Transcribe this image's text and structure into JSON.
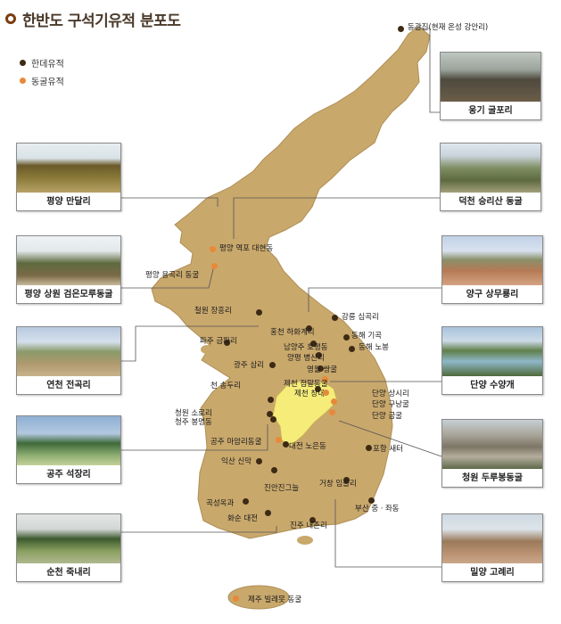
{
  "title": "한반도 구석기유적 분포도",
  "legend": [
    {
      "label": "한데유적",
      "color": "#3d2a14"
    },
    {
      "label": "동굴유적",
      "color": "#e8893a"
    }
  ],
  "photos": [
    {
      "caption": "웅기 굴포리",
      "scene": "coast"
    },
    {
      "caption": "평양 만달리",
      "scene": "hill"
    },
    {
      "caption": "덕천 승리산 동굴",
      "scene": "mountain"
    },
    {
      "caption": "평양 상원 검은모루동굴",
      "scene": "mound"
    },
    {
      "caption": "양구 상무룡리",
      "scene": "valley"
    },
    {
      "caption": "연천 전곡리",
      "scene": "plain"
    },
    {
      "caption": "단양 수양개",
      "scene": "river"
    },
    {
      "caption": "공주 석장리",
      "scene": "riverbank"
    },
    {
      "caption": "청원 두루봉동굴",
      "scene": "quarry"
    },
    {
      "caption": "순천 죽내리",
      "scene": "field"
    },
    {
      "caption": "밀양 고례리",
      "scene": "ridge"
    }
  ],
  "sites": [
    {
      "label": "동관진(현재 온성 강안리)",
      "type": "open"
    },
    {
      "label": "평양 역포 대현동",
      "type": "cave"
    },
    {
      "label": "평양 용곡리 동굴",
      "type": "cave"
    },
    {
      "label": "철원 장흥리",
      "type": "open"
    },
    {
      "label": "강릉 심곡리",
      "type": "open"
    },
    {
      "label": "홍천 하화계리",
      "type": "open"
    },
    {
      "label": "파주 금파리",
      "type": "open"
    },
    {
      "label": "남양주 호평동",
      "type": "open"
    },
    {
      "label": "양평 병산리",
      "type": "open"
    },
    {
      "label": "동해 기곡",
      "type": "open"
    },
    {
      "label": "동해 노봉",
      "type": "open"
    },
    {
      "label": "광주 삼리",
      "type": "open"
    },
    {
      "label": "영월 쌍굴",
      "type": "open"
    },
    {
      "label": "제천 점말동굴",
      "type": "cave"
    },
    {
      "label": "제천 창내",
      "type": "open"
    },
    {
      "label": "단양 상시리",
      "type": "cave"
    },
    {
      "label": "단양 구낭굴",
      "type": "cave"
    },
    {
      "label": "단양 금굴",
      "type": "cave"
    },
    {
      "label": "천 송두리",
      "type": "open"
    },
    {
      "label": "청원 소로리",
      "type": "open"
    },
    {
      "label": "청주 봉명동",
      "type": "open"
    },
    {
      "label": "공주 마암리동굴",
      "type": "cave"
    },
    {
      "label": "대전 노은동",
      "type": "open"
    },
    {
      "label": "익산 신막",
      "type": "open"
    },
    {
      "label": "포항 새터",
      "type": "open"
    },
    {
      "label": "진안진그늘",
      "type": "open"
    },
    {
      "label": "거창 임불리",
      "type": "open"
    },
    {
      "label": "곡성옥과",
      "type": "open"
    },
    {
      "label": "화순 대전",
      "type": "open"
    },
    {
      "label": "부산 중ㆍ좌동",
      "type": "open"
    },
    {
      "label": "진주 내촌리",
      "type": "open"
    },
    {
      "label": "제주 빌레못 동굴",
      "type": "cave"
    }
  ]
}
